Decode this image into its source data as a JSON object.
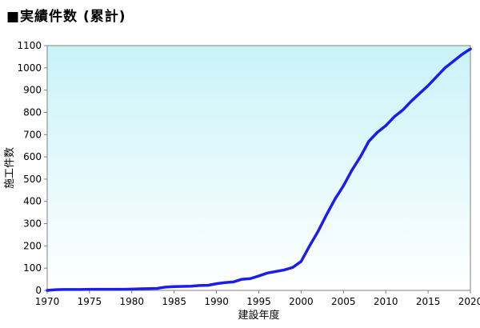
{
  "chart_data": {
    "type": "line",
    "title": "■実績件数 (累計)",
    "xlabel": "建設年度",
    "ylabel": "施工件数",
    "xlim": [
      1970,
      2020
    ],
    "ylim": [
      0,
      1100
    ],
    "x_ticks": [
      1970,
      1975,
      1980,
      1985,
      1990,
      1995,
      2000,
      2005,
      2010,
      2015,
      2020
    ],
    "y_ticks": [
      0,
      100,
      200,
      300,
      400,
      500,
      600,
      700,
      800,
      900,
      1000,
      1100
    ],
    "grid": false,
    "legend": "none",
    "colors": {
      "line": "#1c1ee8",
      "plot_bg_top": "#c9f3f8",
      "plot_bg_bottom": "#ffffff",
      "axis": "#808080"
    },
    "series": [
      {
        "x": [
          1970,
          1971,
          1972,
          1973,
          1974,
          1975,
          1976,
          1977,
          1978,
          1979,
          1980,
          1981,
          1982,
          1983,
          1984,
          1985,
          1986,
          1987,
          1988,
          1989,
          1990,
          1991,
          1992,
          1993,
          1994,
          1995,
          1996,
          1997,
          1998,
          1999,
          2000,
          2001,
          2002,
          2003,
          2004,
          2005,
          2006,
          2007,
          2008,
          2009,
          2010,
          2011,
          2012,
          2013,
          2014,
          2015,
          2016,
          2017,
          2018,
          2019,
          2020
        ],
        "values": [
          0,
          3,
          4,
          4,
          4,
          5,
          5,
          5,
          5,
          5,
          6,
          7,
          8,
          9,
          15,
          17,
          18,
          19,
          22,
          23,
          30,
          35,
          38,
          50,
          53,
          65,
          78,
          85,
          92,
          103,
          130,
          200,
          265,
          340,
          410,
          470,
          540,
          600,
          670,
          710,
          740,
          780,
          810,
          850,
          885,
          920,
          960,
          1000,
          1030,
          1060,
          1085
        ]
      }
    ]
  }
}
